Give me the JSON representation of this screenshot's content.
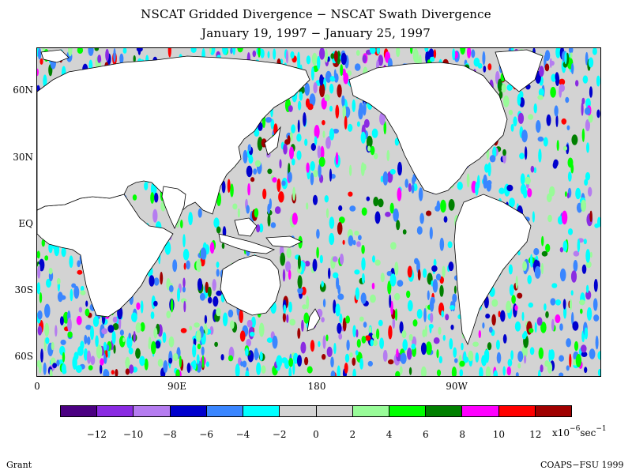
{
  "title_line1": "NSCAT Gridded Divergence − NSCAT Swath Divergence",
  "title_line2": "January 19, 1997 − January 25, 1997",
  "lat_labels": [
    "60N",
    "30N",
    "EQ",
    "30S",
    "60S"
  ],
  "lon_labels": [
    "0",
    "90E",
    "180",
    "90W"
  ],
  "colorbar": {
    "colors": [
      "#4b0082",
      "#8a2be2",
      "#b57cf0",
      "#0000cd",
      "#3a86ff",
      "#00ffff",
      "#d3d3d3",
      "#d3d3d3",
      "#98fb98",
      "#00ff00",
      "#008000",
      "#ff00ff",
      "#ff0000",
      "#a00000"
    ],
    "tick_labels": [
      "−12",
      "−10",
      "−8",
      "−6",
      "−4",
      "−2",
      "0",
      "2",
      "4",
      "6",
      "8",
      "10",
      "12"
    ],
    "units_prefix": "x10",
    "units_exp": "−6",
    "units_mid": "sec",
    "units_exp2": "−1"
  },
  "footer_left": "Grant",
  "footer_right": "COAPS−FSU 1999",
  "land_color": "#ffffff",
  "ocean_color": "#d3d3d3"
}
